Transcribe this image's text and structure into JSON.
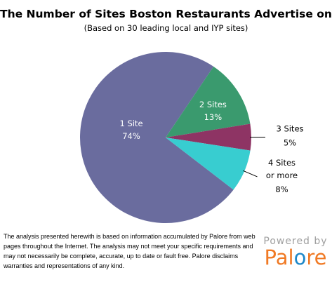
{
  "chart_data": {
    "type": "pie",
    "title": "The Number of Sites Boston Restaurants Advertise on",
    "subtitle": "(Based on 30 leading local and IYP sites)",
    "slices": [
      {
        "label": "1 Site",
        "value": 74,
        "pct_label": "74%",
        "color": "#6a6c9e",
        "label_placement": "inside"
      },
      {
        "label": "2 Sites",
        "value": 13,
        "pct_label": "13%",
        "color": "#3a9a6e",
        "label_placement": "inside"
      },
      {
        "label": "3 Sites",
        "value": 5,
        "pct_label": "5%",
        "color": "#8e3464",
        "label_placement": "outside"
      },
      {
        "label": "4 Sites or more",
        "label_lines": [
          "4 Sites",
          "or more"
        ],
        "value": 8,
        "pct_label": "8%",
        "color": "#38cdd0",
        "label_placement": "outside"
      }
    ]
  },
  "footer": {
    "disclaimer": "The analysis presented herewith is based on information accumulated by Palore from web pages throughout the Internet. The analysis may not meet your specific requirements and may not necessarily be complete, accurate, up to date or fault free. Palore disclaims warranties and representations of any kind."
  },
  "brand": {
    "powered_by": "Powered by",
    "logo_text": "Palore",
    "logo_colors": {
      "main": "#f07a25",
      "dot": "#1e88c8"
    }
  }
}
